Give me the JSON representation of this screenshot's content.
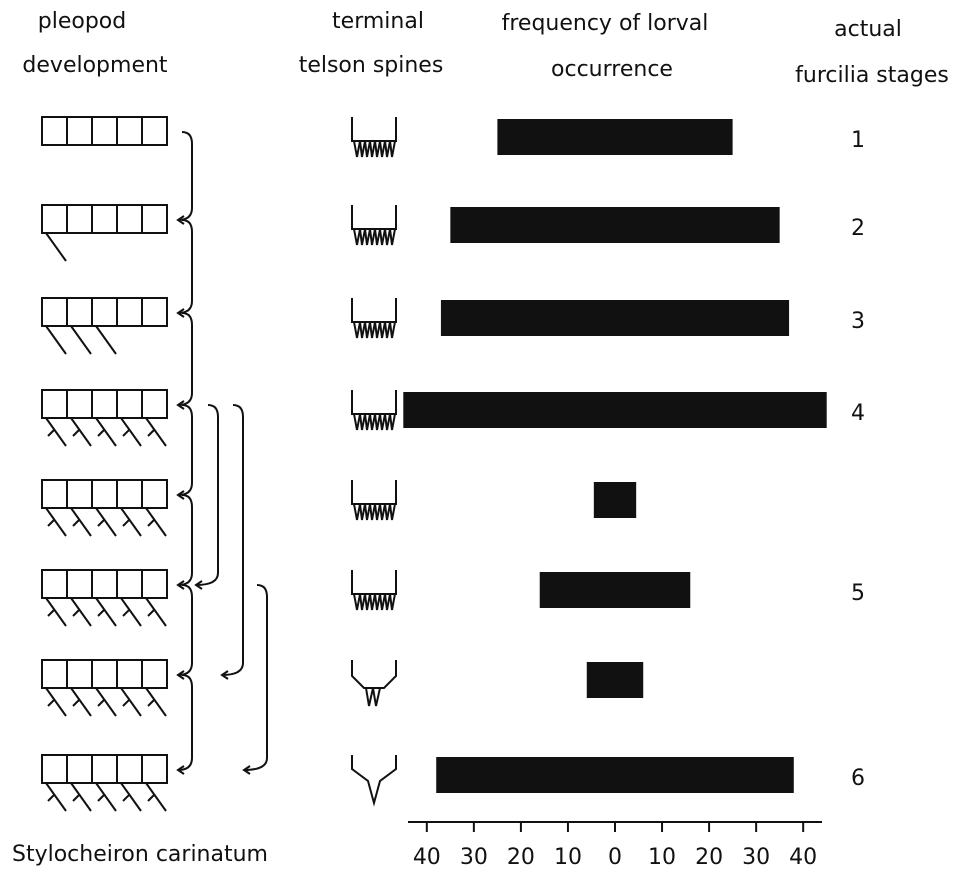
{
  "chart_data": {
    "type": "kite",
    "column_titles": [
      [
        "pleopod",
        "development"
      ],
      [
        "terminal",
        "telson spines"
      ],
      [
        "frequency of lorval",
        "occurrence"
      ],
      [
        "actual",
        "furcilia stages"
      ]
    ],
    "species": "Stylocheiron carinatum",
    "stages": [
      "1",
      "2",
      "3",
      "4",
      null,
      "5",
      null,
      "6"
    ],
    "values": [
      25,
      35,
      37,
      45,
      4.5,
      16,
      6,
      38
    ],
    "color": "#111111",
    "xlim": [
      -44,
      44
    ],
    "xticks": [
      {
        "value": -40,
        "label": "40"
      },
      {
        "value": -30,
        "label": "30"
      },
      {
        "value": -20,
        "label": "20"
      },
      {
        "value": -10,
        "label": "10"
      },
      0,
      {
        "value": 10,
        "label": "10"
      },
      20,
      30,
      40
    ]
  }
}
